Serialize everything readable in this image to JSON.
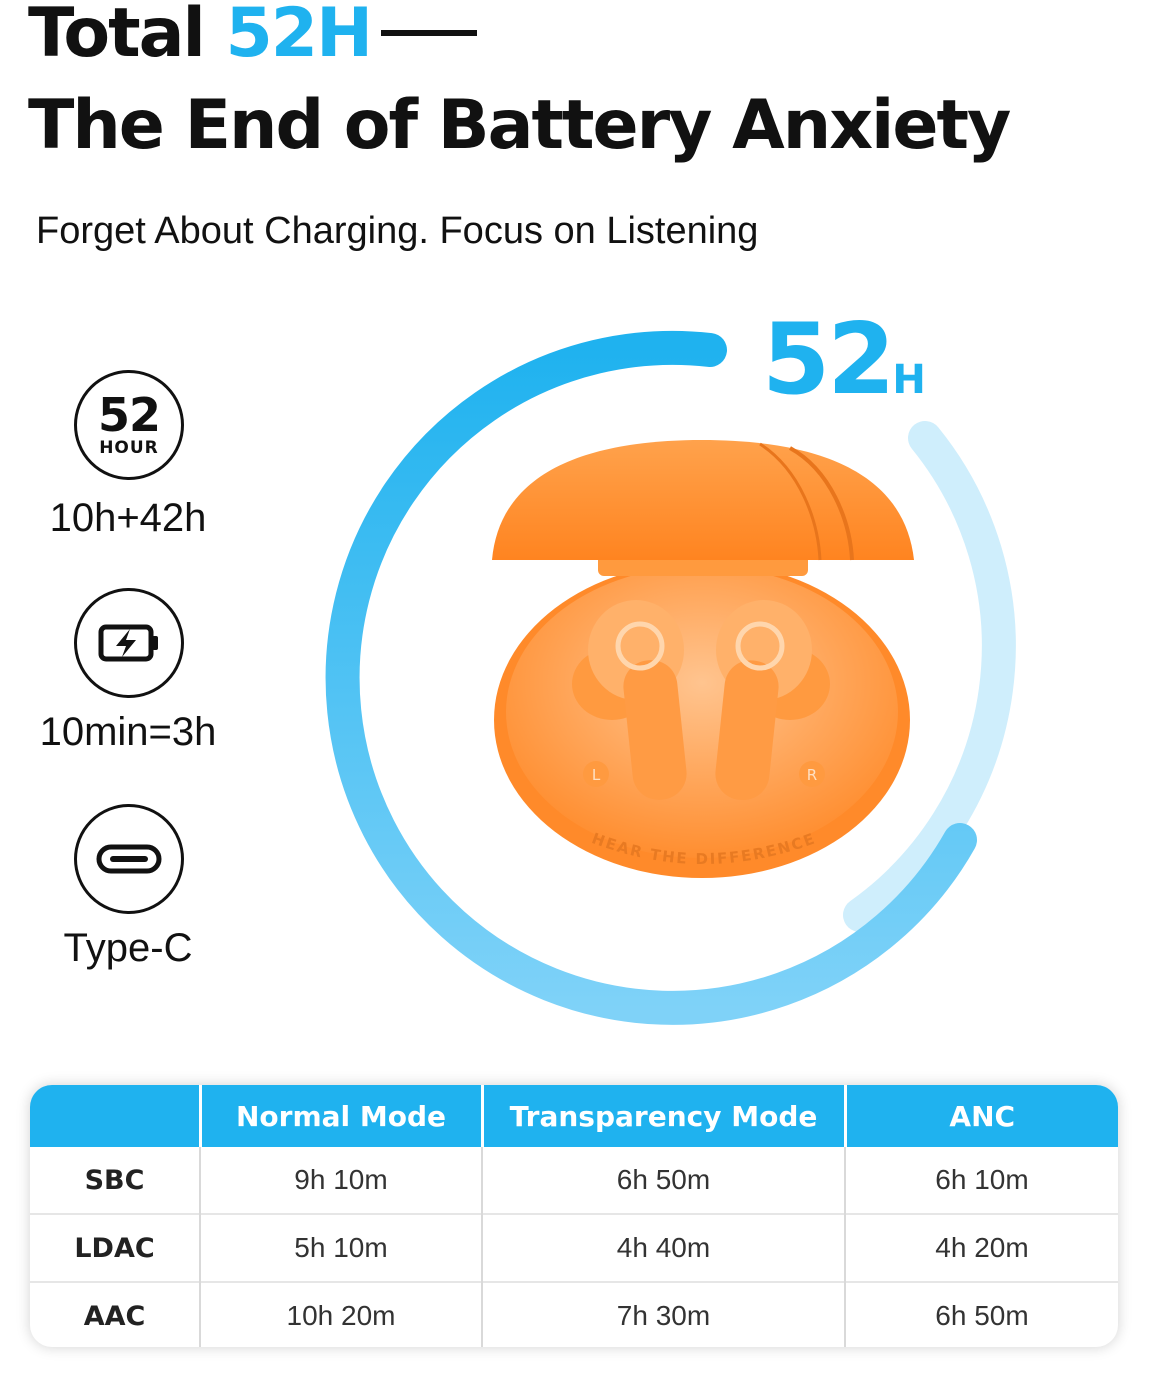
{
  "header": {
    "title_prefix": "Total",
    "title_accent": "52H",
    "title_line2": "The End of Battery Anxiety",
    "subtitle": "Forget About Charging. Focus on Listening"
  },
  "features": [
    {
      "icon": "52-hour-badge-icon",
      "badge_number": "52",
      "badge_unit": "HOUR",
      "label": "10h+42h"
    },
    {
      "icon": "fast-charge-battery-icon",
      "label": "10min=3h"
    },
    {
      "icon": "usb-type-c-port-icon",
      "label": "Type-C"
    }
  ],
  "hero": {
    "hours_number": "52",
    "hours_unit": "H",
    "case_text": "HEAR THE DIFFERENCE",
    "left_marker": "L",
    "right_marker": "R",
    "ring_progress": 0.9
  },
  "table": {
    "headers": [
      "",
      "Normal Mode",
      "Transparency Mode",
      "ANC"
    ],
    "rows": [
      {
        "codec": "SBC",
        "values": [
          "9h 10m",
          "6h 50m",
          "6h 10m"
        ]
      },
      {
        "codec": "LDAC",
        "values": [
          "5h 10m",
          "4h 40m",
          "4h 20m"
        ]
      },
      {
        "codec": "AAC",
        "values": [
          "10h 20m",
          "7h 30m",
          "6h 50m"
        ]
      }
    ]
  },
  "colors": {
    "accent": "#1fb2ef",
    "ring_light": "#cfeefc",
    "case_orange": "#ff8a2a",
    "text": "#111111"
  }
}
